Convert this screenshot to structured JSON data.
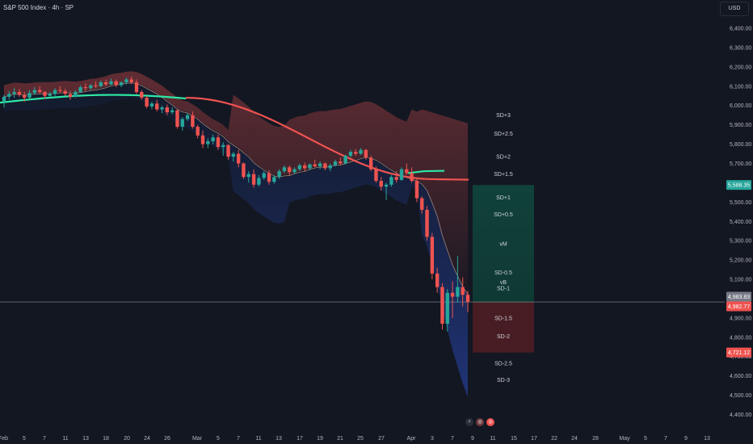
{
  "header": {
    "title": "S&P 500 Index · 4h · SP",
    "currency": "USD"
  },
  "colors": {
    "background": "#131722",
    "bull": "#26a69a",
    "bear": "#ef5350",
    "bull_box": "#0f3b34",
    "bear_box": "#4a1d24",
    "mean_line": "#2ee8a5",
    "axis_text": "#b2b5be"
  },
  "chart_data": {
    "type": "candlestick",
    "title": "S&P 500 Index · 4h · SP",
    "price_axis": {
      "ticks": [
        6400,
        6300,
        6200,
        6100,
        6000,
        5900,
        5800,
        5700,
        5600,
        5500,
        5400,
        5300,
        5200,
        5100,
        4900,
        4800,
        4700,
        4600,
        4500,
        4400
      ],
      "range": [
        4380,
        6450
      ],
      "grid": false
    },
    "time_axis": {
      "labels": [
        "Feb",
        "5",
        "7",
        "11",
        "13",
        "18",
        "20",
        "24",
        "26",
        "Mar",
        "5",
        "7",
        "11",
        "13",
        "17",
        "19",
        "21",
        "25",
        "27",
        "Apr",
        "3",
        "7",
        "9",
        "11",
        "15",
        "17",
        "22",
        "24",
        "28",
        "May",
        "5",
        "7",
        "9",
        "13"
      ]
    },
    "price_labels": {
      "last": "4,982.77",
      "mid": "4,983.83",
      "green": "5,588.35",
      "red": "4,721.12"
    },
    "levels": [
      {
        "label": "SD+3",
        "price": 5950
      },
      {
        "label": "SD+2.5",
        "price": 5855
      },
      {
        "label": "SD+2",
        "price": 5735
      },
      {
        "label": "SD+1.5",
        "price": 5645
      },
      {
        "label": "SD+1",
        "price": 5525
      },
      {
        "label": "SD+0.5",
        "price": 5437
      },
      {
        "label": "vM",
        "price": 5283
      },
      {
        "label": "SD-0.5",
        "price": 5135
      },
      {
        "label": "vB",
        "price": 5086
      },
      {
        "label": "SD-1",
        "price": 5055
      },
      {
        "label": "SD-1.5",
        "price": 4900
      },
      {
        "label": "SD-2",
        "price": 4805
      },
      {
        "label": "SD-2.5",
        "price": 4665
      },
      {
        "label": "SD-3",
        "price": 4580
      }
    ],
    "target_box": {
      "top": 5588.35,
      "entry": 4982.77,
      "bottom": 4721.12
    },
    "candles": [
      [
        6020,
        6055,
        5990,
        6045
      ],
      [
        6045,
        6075,
        6030,
        6060
      ],
      [
        6060,
        6090,
        6040,
        6070
      ],
      [
        6070,
        6085,
        6045,
        6055
      ],
      [
        6055,
        6070,
        6020,
        6040
      ],
      [
        6040,
        6080,
        6035,
        6065
      ],
      [
        6065,
        6095,
        6055,
        6080
      ],
      [
        6080,
        6100,
        6060,
        6070
      ],
      [
        6070,
        6075,
        6035,
        6050
      ],
      [
        6050,
        6070,
        6040,
        6060
      ],
      [
        6060,
        6090,
        6050,
        6080
      ],
      [
        6080,
        6100,
        6065,
        6075
      ],
      [
        6075,
        6085,
        6050,
        6060
      ],
      [
        6060,
        6075,
        6030,
        6045
      ],
      [
        6045,
        6080,
        6040,
        6070
      ],
      [
        6070,
        6105,
        6065,
        6095
      ],
      [
        6095,
        6115,
        6075,
        6090
      ],
      [
        6090,
        6110,
        6080,
        6105
      ],
      [
        6105,
        6125,
        6090,
        6100
      ],
      [
        6100,
        6130,
        6095,
        6120
      ],
      [
        6120,
        6135,
        6100,
        6110
      ],
      [
        6110,
        6140,
        6105,
        6125
      ],
      [
        6125,
        6135,
        6095,
        6105
      ],
      [
        6105,
        6125,
        6095,
        6120
      ],
      [
        6120,
        6145,
        6110,
        6135
      ],
      [
        6135,
        6150,
        6110,
        6120
      ],
      [
        6120,
        6135,
        6060,
        6070
      ],
      [
        6070,
        6080,
        6030,
        6040
      ],
      [
        6040,
        6050,
        5985,
        5995
      ],
      [
        5995,
        6020,
        5980,
        6010
      ],
      [
        6010,
        6030,
        5970,
        5980
      ],
      [
        5980,
        6000,
        5960,
        5990
      ],
      [
        5990,
        6005,
        5950,
        5965
      ],
      [
        5965,
        5990,
        5955,
        5975
      ],
      [
        5975,
        5980,
        5880,
        5890
      ],
      [
        5890,
        5940,
        5870,
        5930
      ],
      [
        5930,
        5960,
        5920,
        5950
      ],
      [
        5950,
        5970,
        5880,
        5890
      ],
      [
        5890,
        5900,
        5830,
        5845
      ],
      [
        5845,
        5870,
        5780,
        5800
      ],
      [
        5800,
        5830,
        5780,
        5815
      ],
      [
        5815,
        5850,
        5800,
        5835
      ],
      [
        5835,
        5850,
        5770,
        5785
      ],
      [
        5785,
        5810,
        5740,
        5795
      ],
      [
        5795,
        5800,
        5720,
        5735
      ],
      [
        5735,
        5760,
        5710,
        5750
      ],
      [
        5750,
        5770,
        5680,
        5700
      ],
      [
        5700,
        5705,
        5620,
        5630
      ],
      [
        5630,
        5660,
        5600,
        5645
      ],
      [
        5645,
        5670,
        5575,
        5590
      ],
      [
        5590,
        5640,
        5580,
        5625
      ],
      [
        5625,
        5660,
        5615,
        5650
      ],
      [
        5650,
        5665,
        5590,
        5605
      ],
      [
        5605,
        5640,
        5595,
        5630
      ],
      [
        5630,
        5670,
        5620,
        5660
      ],
      [
        5660,
        5690,
        5650,
        5680
      ],
      [
        5680,
        5690,
        5640,
        5655
      ],
      [
        5655,
        5680,
        5645,
        5670
      ],
      [
        5670,
        5700,
        5660,
        5690
      ],
      [
        5690,
        5705,
        5660,
        5675
      ],
      [
        5675,
        5700,
        5665,
        5695
      ],
      [
        5695,
        5720,
        5680,
        5685
      ],
      [
        5685,
        5710,
        5670,
        5700
      ],
      [
        5700,
        5705,
        5665,
        5675
      ],
      [
        5675,
        5700,
        5660,
        5690
      ],
      [
        5690,
        5720,
        5685,
        5710
      ],
      [
        5710,
        5730,
        5690,
        5700
      ],
      [
        5700,
        5745,
        5695,
        5740
      ],
      [
        5740,
        5770,
        5730,
        5760
      ],
      [
        5760,
        5775,
        5740,
        5750
      ],
      [
        5750,
        5780,
        5745,
        5770
      ],
      [
        5770,
        5775,
        5720,
        5730
      ],
      [
        5730,
        5740,
        5660,
        5670
      ],
      [
        5670,
        5685,
        5600,
        5610
      ],
      [
        5610,
        5630,
        5560,
        5580
      ],
      [
        5580,
        5600,
        5510,
        5590
      ],
      [
        5590,
        5640,
        5580,
        5630
      ],
      [
        5630,
        5660,
        5600,
        5615
      ],
      [
        5615,
        5680,
        5610,
        5670
      ],
      [
        5670,
        5700,
        5640,
        5650
      ],
      [
        5650,
        5680,
        5600,
        5610
      ],
      [
        5610,
        5620,
        5500,
        5520
      ],
      [
        5520,
        5530,
        5440,
        5460
      ],
      [
        5460,
        5480,
        5300,
        5320
      ],
      [
        5320,
        5340,
        5100,
        5130
      ],
      [
        5130,
        5160,
        5030,
        5060
      ],
      [
        5060,
        5080,
        4840,
        4870
      ],
      [
        4870,
        5050,
        4830,
        5030
      ],
      [
        5030,
        5090,
        4900,
        5010
      ],
      [
        5010,
        5220,
        4980,
        5060
      ],
      [
        5060,
        5110,
        4960,
        5020
      ],
      [
        5020,
        5040,
        4930,
        4983
      ]
    ]
  }
}
